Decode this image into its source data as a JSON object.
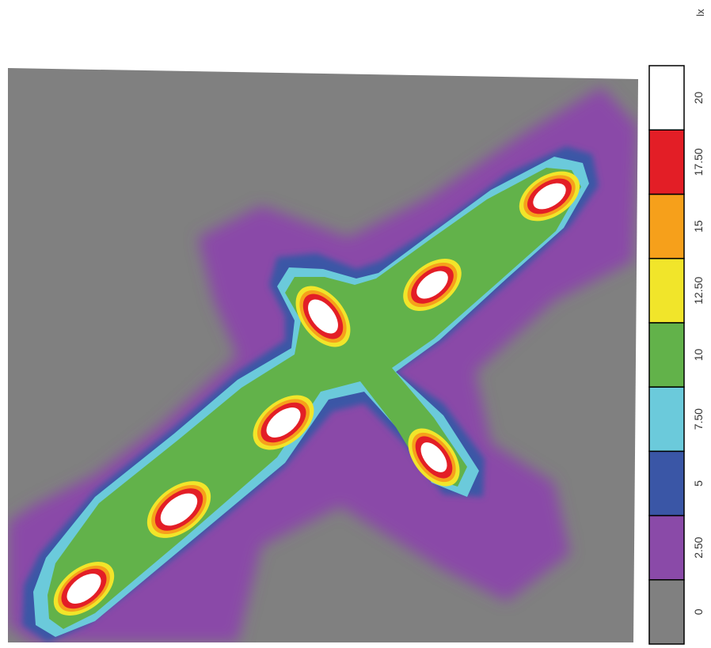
{
  "chart_data": {
    "type": "heatmap",
    "unit": "lx",
    "legend_bins": [
      {
        "label": "0",
        "color": "#808080"
      },
      {
        "label": "2.50",
        "color": "#8a4aa8"
      },
      {
        "label": "5",
        "color": "#3a56a6"
      },
      {
        "label": "7.50",
        "color": "#6bcadb"
      },
      {
        "label": "10",
        "color": "#62b24a"
      },
      {
        "label": "12.50",
        "color": "#f1e52a"
      },
      {
        "label": "15",
        "color": "#f6a01b"
      },
      {
        "label": "17.50",
        "color": "#e31e26"
      },
      {
        "label": "20",
        "color": "#ffffff"
      }
    ],
    "legend_placement": "right, vertical",
    "background_level": "0"
  }
}
